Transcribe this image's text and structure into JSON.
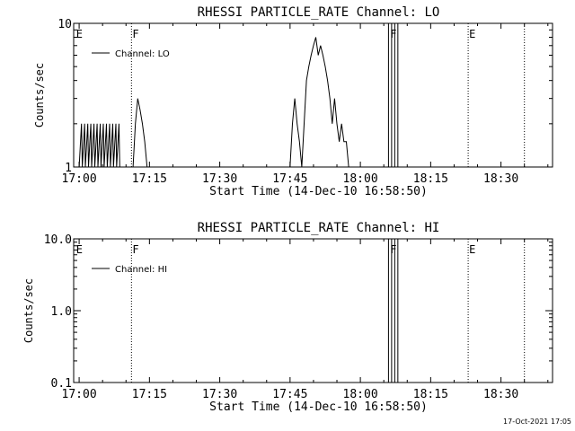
{
  "chart_data": [
    {
      "type": "line",
      "title": "RHESSI PARTICLE_RATE Channel: LO",
      "xlabel": "Start Time (14-Dec-10 16:58:50)",
      "ylabel": "Counts/sec",
      "yscale": "log",
      "ylim": [
        1,
        10
      ],
      "xlim": [
        "16:58:50",
        "18:41:00"
      ],
      "x_ticks": [
        "17:00",
        "17:15",
        "17:30",
        "17:45",
        "18:00",
        "18:15",
        "18:30"
      ],
      "y_ticks": [
        "1",
        "10"
      ],
      "legend": "top-left",
      "series": [
        {
          "name": "Channel: LO",
          "x": [
            "17:00:00",
            "17:00:30",
            "17:00:40",
            "17:01:10",
            "17:01:20",
            "17:01:50",
            "17:02:00",
            "17:02:30",
            "17:02:40",
            "17:03:10",
            "17:03:20",
            "17:03:50",
            "17:04:00",
            "17:04:30",
            "17:04:40",
            "17:05:10",
            "17:05:20",
            "17:05:50",
            "17:06:00",
            "17:06:30",
            "17:06:40",
            "17:07:10",
            "17:07:20",
            "17:07:50",
            "17:08:00",
            "17:08:30",
            "17:08:40",
            "17:11:30",
            "17:12:00",
            "17:12:30",
            "17:13:00",
            "17:13:30",
            "17:14:00",
            "17:14:30",
            "17:15:00",
            "17:45:00",
            "17:45:30",
            "17:46:00",
            "17:46:30",
            "17:47:00",
            "17:47:30",
            "17:48:00",
            "17:48:30",
            "17:49:00",
            "17:49:30",
            "17:50:00",
            "17:50:30",
            "17:51:00",
            "17:51:30",
            "17:52:00",
            "17:52:30",
            "17:53:00",
            "17:53:30",
            "17:54:00",
            "17:54:30",
            "17:55:00",
            "17:55:30",
            "17:56:00",
            "17:56:30",
            "17:57:00",
            "17:57:30",
            "17:58:00"
          ],
          "values": [
            1,
            2,
            1,
            2,
            1,
            2,
            1,
            2,
            1,
            2,
            1,
            2,
            1,
            2,
            1,
            2,
            1,
            2,
            1,
            2,
            1,
            2,
            1,
            2,
            1,
            2,
            1,
            1,
            2,
            3,
            2.5,
            2,
            1.5,
            1,
            1,
            1,
            2,
            3,
            2,
            1.5,
            1,
            2,
            4,
            5,
            6,
            7,
            8,
            6,
            7,
            6,
            5,
            4,
            3,
            2,
            3,
            2,
            1.5,
            2,
            1.5,
            1.5,
            1,
            1
          ]
        }
      ],
      "markers": [
        {
          "time": "16:59:10",
          "label": "E"
        },
        {
          "time": "17:11:10",
          "label": "F"
        },
        {
          "time": "18:06:10",
          "label": "F"
        },
        {
          "time": "18:23:00",
          "label": "E"
        },
        {
          "time": "18:35:00",
          "label": ""
        }
      ],
      "gaps": [
        [
          "18:06:00",
          "18:06:40"
        ],
        [
          "18:07:20",
          "18:08:00"
        ]
      ]
    },
    {
      "type": "line",
      "title": "RHESSI PARTICLE_RATE Channel: HI",
      "xlabel": "Start Time (14-Dec-10 16:58:50)",
      "ylabel": "Counts/sec",
      "yscale": "log",
      "ylim": [
        0.1,
        10
      ],
      "xlim": [
        "16:58:50",
        "18:41:00"
      ],
      "x_ticks": [
        "17:00",
        "17:15",
        "17:30",
        "17:45",
        "18:00",
        "18:15",
        "18:30"
      ],
      "y_ticks": [
        "0.1",
        "1.0",
        "10.0"
      ],
      "legend": "top-left",
      "series": [
        {
          "name": "Channel: HI",
          "x": [],
          "values": []
        }
      ],
      "markers": [
        {
          "time": "16:59:10",
          "label": "E"
        },
        {
          "time": "17:11:10",
          "label": "F"
        },
        {
          "time": "18:06:10",
          "label": "F"
        },
        {
          "time": "18:23:00",
          "label": "E"
        },
        {
          "time": "18:35:00",
          "label": ""
        }
      ],
      "gaps": [
        [
          "18:06:00",
          "18:06:40"
        ],
        [
          "18:07:20",
          "18:08:00"
        ]
      ]
    }
  ],
  "footer": {
    "timestamp": "17-Oct-2021 17:05"
  }
}
